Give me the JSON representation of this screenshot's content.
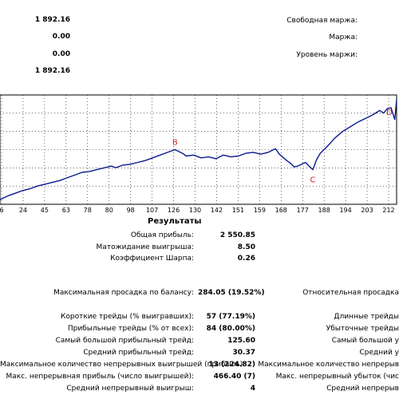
{
  "colors": {
    "line": "#0b1a8f",
    "grid": "#000000",
    "label": "#d02020",
    "axis_bg": "#ffffff"
  },
  "top": {
    "values": [
      "1 892.16",
      "0.00",
      "0.00",
      "1 892.16"
    ],
    "labels": [
      "Свободная маржа:",
      "Маржа:",
      "Уровень маржи:"
    ]
  },
  "chart_data": {
    "type": "line",
    "title": "",
    "xlabel": "",
    "ylabel": "",
    "x_ticks": [
      "6",
      "24",
      "45",
      "63",
      "78",
      "80",
      "98",
      "107",
      "126",
      "130",
      "142",
      "151",
      "159",
      "168",
      "177",
      "188",
      "194",
      "203",
      "212"
    ],
    "x_range": [
      0,
      213
    ],
    "point_labels": [
      {
        "name": "B",
        "x": 94
      },
      {
        "name": "C",
        "x": 168
      },
      {
        "name": "D",
        "x": 212
      }
    ],
    "series": [
      {
        "x": [
          0,
          4,
          8,
          12,
          16,
          20,
          24,
          28,
          32,
          36,
          40,
          44,
          48,
          52,
          56,
          60,
          62,
          66,
          70,
          74,
          78,
          82,
          86,
          90,
          94,
          98,
          100,
          104,
          108,
          112,
          116,
          120,
          124,
          128,
          132,
          136,
          140,
          144,
          148,
          150,
          154,
          156,
          158,
          160,
          162,
          164,
          166,
          168,
          170,
          172,
          176,
          180,
          184,
          188,
          192,
          196,
          200,
          204,
          206,
          208,
          210,
          212,
          213
        ],
        "y": [
          0,
          8,
          14,
          20,
          24,
          30,
          34,
          38,
          42,
          48,
          54,
          60,
          62,
          66,
          70,
          74,
          70,
          76,
          78,
          82,
          86,
          92,
          98,
          104,
          110,
          102,
          96,
          98,
          92,
          94,
          90,
          98,
          94,
          96,
          102,
          104,
          100,
          104,
          112,
          100,
          86,
          80,
          72,
          74,
          78,
          82,
          74,
          66,
          88,
          102,
          118,
          136,
          150,
          160,
          170,
          178,
          186,
          196,
          190,
          200,
          202,
          176,
          220
        ]
      }
    ],
    "ylim": [
      -10,
      230
    ],
    "grid": true
  },
  "results": {
    "title": "Результаты",
    "rows": [
      {
        "label": "Общая прибыль:",
        "value": "2 550.85"
      },
      {
        "label": "Матожидание выигрыша:",
        "value": "8.50"
      },
      {
        "label": "Коэффициент Шарпа:",
        "value": "0.26"
      }
    ]
  },
  "stats": {
    "rows": [
      {
        "label": "Максимальная просадка по балансу:",
        "value": "284.05 (19.52%)",
        "right": "Относительная просадка"
      },
      {
        "label": "Короткие трейды (% выигравших):",
        "value": "57 (77.19%)",
        "right": "Длинные трейды"
      },
      {
        "label": "Прибыльные трейды (% от всех):",
        "value": "84 (80.00%)",
        "right": "Убыточные трейды"
      },
      {
        "label": "Самый большой прибыльный трейд:",
        "value": "125.60",
        "right": "Самый большой у"
      },
      {
        "label": "Средний прибыльный трейд:",
        "value": "30.37",
        "right": "Средний у"
      },
      {
        "label": "Максимальное количество непрерывных выигрышей (прибыль):",
        "value": "13 (224.82)",
        "right": "Максимальное количество непрерыв"
      },
      {
        "label": "Макс. непрерывная прибыль (число выигрышей):",
        "value": "466.40 (7)",
        "right": "Макс. непрерывный убыток (чис"
      },
      {
        "label": "Средний непрерывный выигрыш:",
        "value": "4",
        "right": "Средний непрерыв"
      }
    ]
  }
}
